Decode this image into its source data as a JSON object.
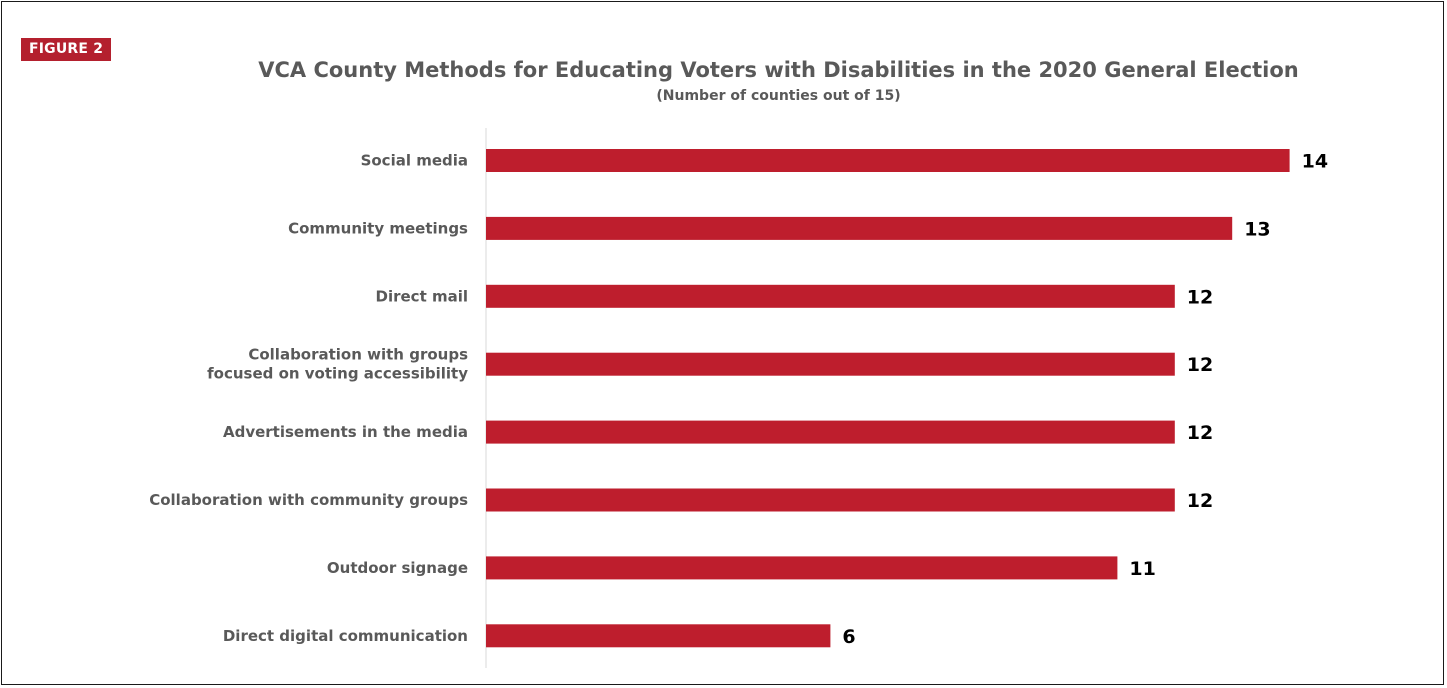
{
  "badge": "FIGURE 2",
  "chart_data": {
    "type": "bar",
    "orientation": "horizontal",
    "title": "VCA County Methods for Educating Voters with Disabilities in the 2020 General Election",
    "subtitle": "(Number of counties out of 15)",
    "categories": [
      "Social media",
      "Community meetings",
      "Direct mail",
      [
        "Collaboration with groups",
        "focused on voting accessibility"
      ],
      "Advertisements in the media",
      "Collaboration with community groups",
      "Outdoor signage",
      "Direct digital communication"
    ],
    "values": [
      14,
      13,
      12,
      12,
      12,
      12,
      11,
      6
    ],
    "xlim": [
      0,
      15
    ],
    "grid": false,
    "legend": "none",
    "bar_color": "#be1e2d"
  }
}
